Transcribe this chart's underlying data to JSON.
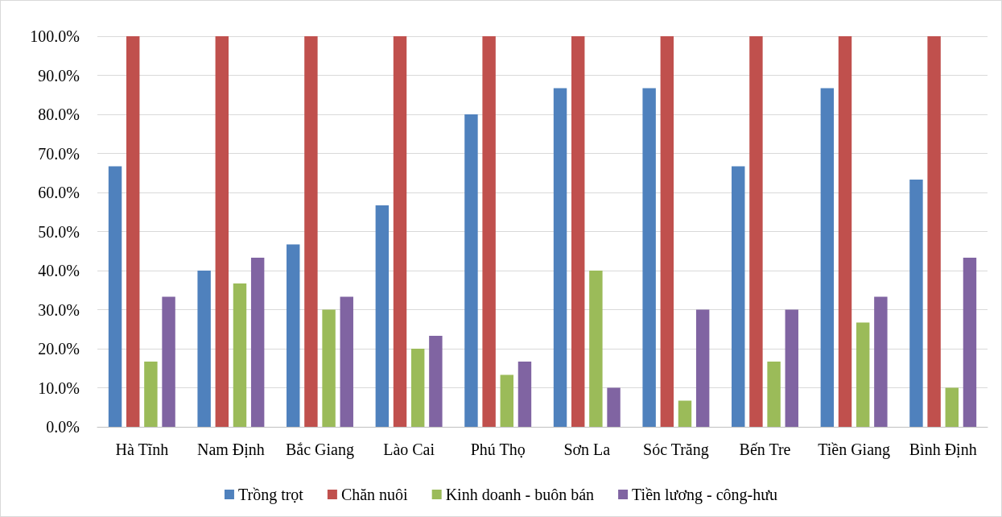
{
  "chart_data": {
    "type": "bar",
    "categories": [
      "Hà Tĩnh",
      "Nam Định",
      "Bắc Giang",
      "Lào Cai",
      "Phú Thọ",
      "Sơn La",
      "Sóc Trăng",
      "Bến Tre",
      "Tiền Giang",
      "Bình Định"
    ],
    "series": [
      {
        "name": "Trồng trọt",
        "color": "#4f81bd",
        "values": [
          66.7,
          40,
          46.7,
          56.7,
          80,
          86.7,
          86.7,
          66.7,
          86.7,
          63.3
        ]
      },
      {
        "name": "Chăn nuôi",
        "color": "#c0504d",
        "values": [
          100,
          100,
          100,
          100,
          100,
          100,
          100,
          100,
          100,
          100
        ]
      },
      {
        "name": "Kinh doanh - buôn bán",
        "color": "#9bbb59",
        "values": [
          16.7,
          36.7,
          30,
          20,
          13.3,
          40,
          6.7,
          16.7,
          26.7,
          10
        ]
      },
      {
        "name": "Tiền lương - công-hưu",
        "color": "#8064a2",
        "values": [
          33.3,
          43.3,
          33.3,
          23.3,
          16.7,
          10,
          30,
          30,
          33.3,
          43.3
        ]
      }
    ],
    "ylim": [
      0,
      100
    ],
    "yticks": [
      {
        "value": 0,
        "label": "0.0%"
      },
      {
        "value": 10,
        "label": "10.0%"
      },
      {
        "value": 20,
        "label": "20.0%"
      },
      {
        "value": 30,
        "label": "30.0%"
      },
      {
        "value": 40,
        "label": "40.0%"
      },
      {
        "value": 50,
        "label": "50.0%"
      },
      {
        "value": 60,
        "label": "60.0%"
      },
      {
        "value": 70,
        "label": "70.0%"
      },
      {
        "value": 80,
        "label": "80.0%"
      },
      {
        "value": 90,
        "label": "90.0%"
      },
      {
        "value": 100,
        "label": "100.0%"
      }
    ],
    "grid": "y",
    "legend": "bottom"
  }
}
